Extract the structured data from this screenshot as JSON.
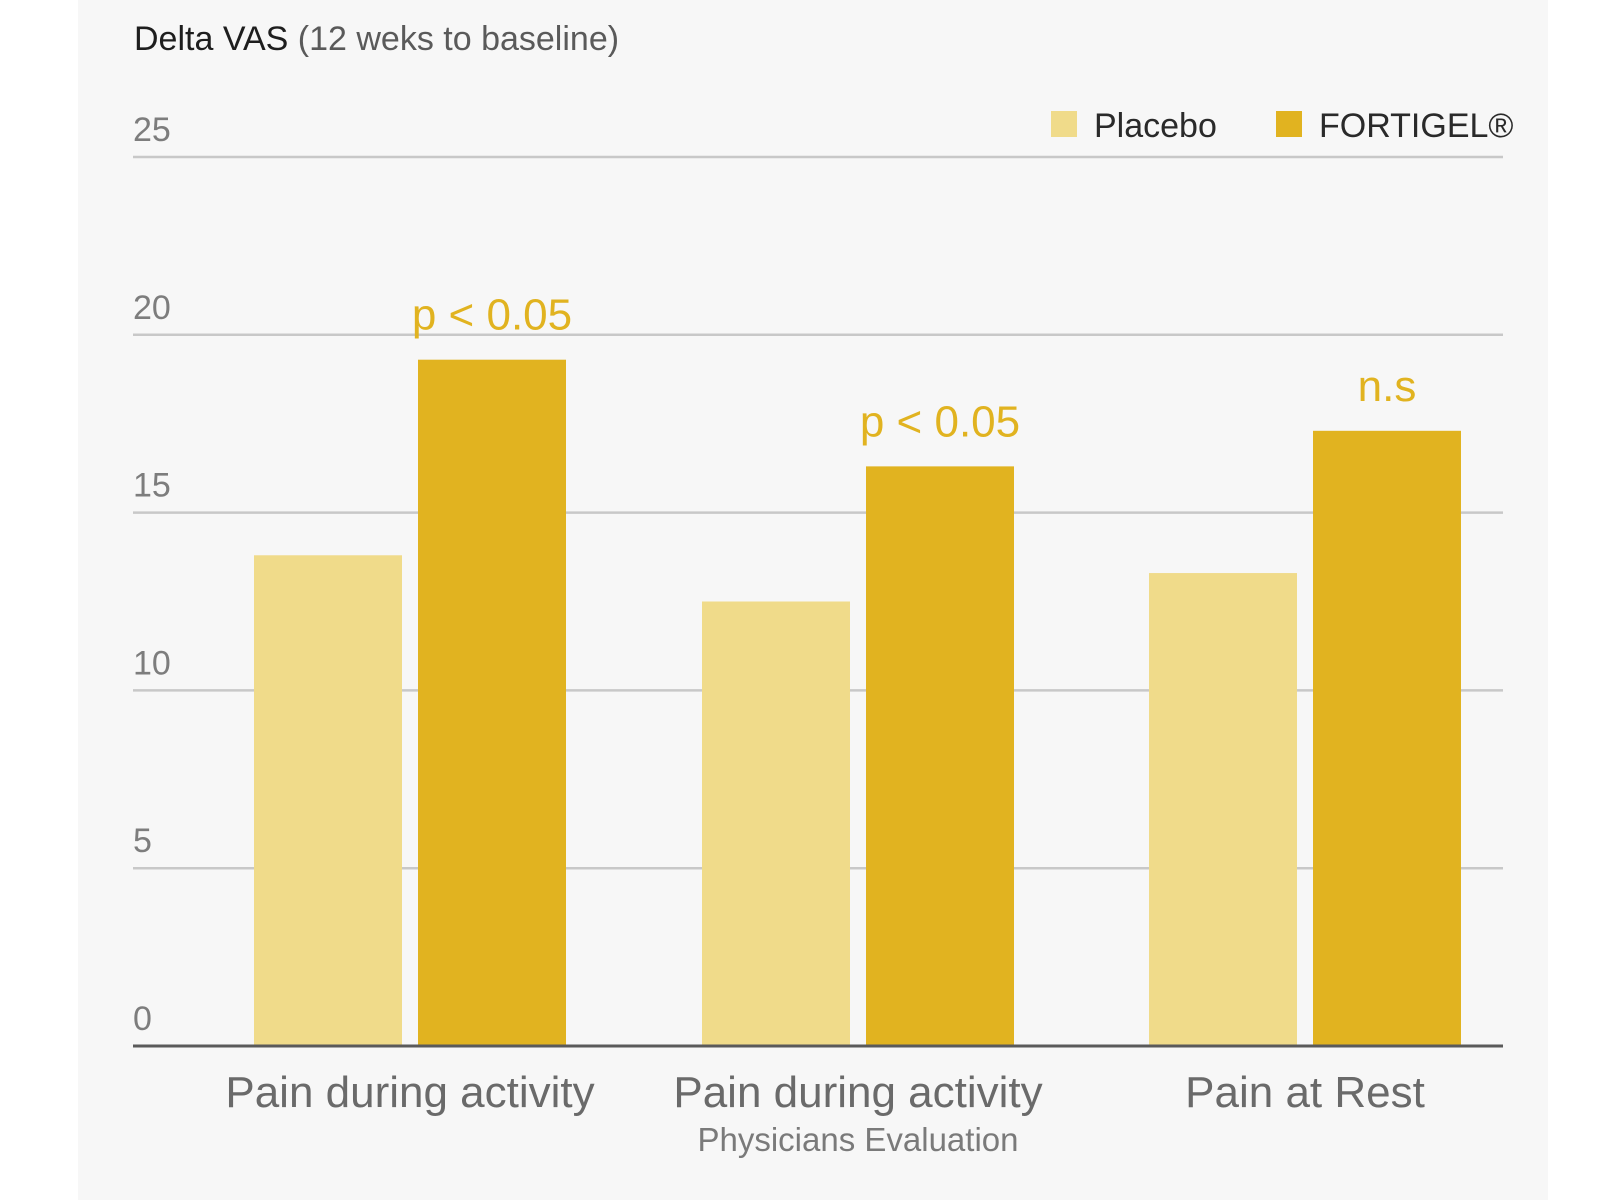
{
  "title": {
    "bold": "Delta VAS",
    "light": "(12 weks to baseline)"
  },
  "colors": {
    "background": "#f7f7f7",
    "placebo": "#f0db8a",
    "fortigel": "#e1b320",
    "grid": "#c8c8c8",
    "axis": "#5a5a5a"
  },
  "chart_data": {
    "type": "bar",
    "title": "Delta VAS (12 weks to baseline)",
    "xlabel": "",
    "ylabel": "",
    "ylim": [
      0,
      25
    ],
    "yticks": [
      0,
      5,
      10,
      15,
      20,
      25
    ],
    "grid": true,
    "legend_position": "top-right",
    "categories": [
      {
        "label": "Pain during activity",
        "sublabel": ""
      },
      {
        "label": "Pain during activity",
        "sublabel": "Physicians Evaluation"
      },
      {
        "label": "Pain at Rest",
        "sublabel": ""
      }
    ],
    "series": [
      {
        "name": "Placebo",
        "color": "#f0db8a",
        "values": [
          13.8,
          12.5,
          13.3
        ]
      },
      {
        "name": "FORTIGEL®",
        "color": "#e1b320",
        "values": [
          19.3,
          16.3,
          17.3
        ]
      }
    ],
    "annotations": [
      "p < 0.05",
      "p < 0.05",
      "n.s"
    ]
  }
}
